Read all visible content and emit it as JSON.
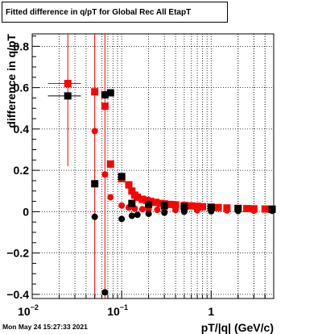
{
  "footer": {
    "timestamp": "Mon May 24 15:27:33 2021"
  },
  "chart_data": {
    "type": "scatter",
    "title": "Fitted difference in q/pT for Global Rec All EtapT",
    "xlabel": "pT/|q| (GeV/c)",
    "ylabel": "difference in q/pT",
    "xscale": "log",
    "xlim": [
      0.01,
      5
    ],
    "ylim": [
      -0.42,
      0.86
    ],
    "grid": true,
    "x_tick_labels": [
      "10^-2",
      "10^-1",
      "1"
    ],
    "y_tick_labels": [
      "−0.4",
      "−0.2",
      "0",
      "0.2",
      "0.4",
      "0.6",
      "0.8"
    ],
    "series": [
      {
        "color": "#ff0000",
        "marker": "square",
        "points": [
          {
            "x": 0.025,
            "y": 0.62,
            "xerr": [
              0.01,
              0.01
            ],
            "yerr": 0.4
          },
          {
            "x": 0.05,
            "y": 0.58,
            "xerr": [
              0.002,
              0.002
            ],
            "yerr": 2.0
          },
          {
            "x": 0.065,
            "y": 0.51,
            "xerr": [
              0.002,
              0.002
            ],
            "yerr": 2.0
          },
          {
            "x": 0.075,
            "y": 0.23,
            "yerr": 0.02
          },
          {
            "x": 0.1,
            "y": 0.16
          },
          {
            "x": 0.12,
            "y": 0.13
          },
          {
            "x": 0.13,
            "y": 0.1
          },
          {
            "x": 0.14,
            "y": 0.08
          },
          {
            "x": 0.15,
            "y": 0.07
          },
          {
            "x": 0.17,
            "y": 0.06
          },
          {
            "x": 0.19,
            "y": 0.055
          },
          {
            "x": 0.21,
            "y": 0.05
          },
          {
            "x": 0.24,
            "y": 0.045
          },
          {
            "x": 0.27,
            "y": 0.04
          },
          {
            "x": 0.3,
            "y": 0.038
          },
          {
            "x": 0.35,
            "y": 0.035
          },
          {
            "x": 0.4,
            "y": 0.033
          },
          {
            "x": 0.5,
            "y": 0.03
          },
          {
            "x": 0.6,
            "y": 0.028
          },
          {
            "x": 0.7,
            "y": 0.026
          },
          {
            "x": 0.8,
            "y": 0.024
          },
          {
            "x": 1.0,
            "y": 0.022
          },
          {
            "x": 1.2,
            "y": 0.02
          },
          {
            "x": 1.5,
            "y": 0.018
          },
          {
            "x": 2.0,
            "y": 0.016
          },
          {
            "x": 2.5,
            "y": 0.015
          },
          {
            "x": 3.0,
            "y": 0.014
          },
          {
            "x": 4.0,
            "y": 0.013
          },
          {
            "x": 4.8,
            "y": 0.012
          }
        ]
      },
      {
        "color": "#ff0000",
        "marker": "circle",
        "points": [
          {
            "x": 0.05,
            "y": 0.39
          },
          {
            "x": 0.065,
            "y": 0.18
          },
          {
            "x": 0.075,
            "y": 0.07
          },
          {
            "x": 0.1,
            "y": 0.03
          },
          {
            "x": 0.12,
            "y": 0.02
          },
          {
            "x": 0.14,
            "y": 0.015
          },
          {
            "x": 0.17,
            "y": 0.012
          },
          {
            "x": 0.2,
            "y": 0.01
          },
          {
            "x": 0.25,
            "y": 0.009
          },
          {
            "x": 0.3,
            "y": 0.008
          },
          {
            "x": 0.4,
            "y": 0.008
          },
          {
            "x": 0.5,
            "y": 0.007
          },
          {
            "x": 0.7,
            "y": 0.007
          },
          {
            "x": 1.0,
            "y": 0.006
          },
          {
            "x": 1.5,
            "y": 0.006
          },
          {
            "x": 2.0,
            "y": 0.006
          },
          {
            "x": 3.0,
            "y": 0.005
          },
          {
            "x": 4.8,
            "y": 0.005
          }
        ]
      },
      {
        "color": "#000000",
        "marker": "square",
        "points": [
          {
            "x": 0.025,
            "y": 0.56,
            "xerr": [
              0.01,
              0.01
            ]
          },
          {
            "x": 0.05,
            "y": 0.135
          },
          {
            "x": 0.065,
            "y": 0.565
          },
          {
            "x": 0.075,
            "y": 0.575
          },
          {
            "x": 0.1,
            "y": 0.17
          },
          {
            "x": 0.13,
            "y": 0.04
          },
          {
            "x": 0.2,
            "y": 0.035
          },
          {
            "x": 0.3,
            "y": 0.03
          },
          {
            "x": 0.5,
            "y": 0.025
          },
          {
            "x": 1.0,
            "y": 0.02
          },
          {
            "x": 2.0,
            "y": 0.015
          },
          {
            "x": 4.8,
            "y": 0.012
          }
        ]
      },
      {
        "color": "#000000",
        "marker": "circle",
        "points": [
          {
            "x": 0.05,
            "y": -0.025
          },
          {
            "x": 0.065,
            "y": -0.39
          },
          {
            "x": 0.1,
            "y": -0.035
          },
          {
            "x": 0.13,
            "y": -0.02
          },
          {
            "x": 0.15,
            "y": -0.015
          },
          {
            "x": 0.2,
            "y": -0.01
          },
          {
            "x": 0.3,
            "y": -0.005
          },
          {
            "x": 0.5,
            "y": 0.0
          },
          {
            "x": 1.0,
            "y": 0.002
          },
          {
            "x": 2.0,
            "y": 0.003
          },
          {
            "x": 4.8,
            "y": 0.004
          }
        ]
      }
    ]
  }
}
